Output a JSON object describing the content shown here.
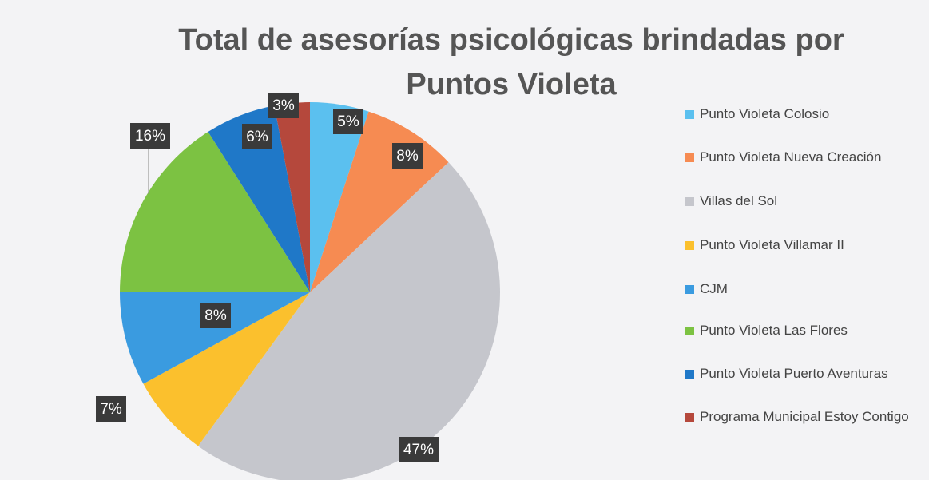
{
  "chart_data": {
    "type": "pie",
    "title": "Total de asesorías psicológicas brindadas por Puntos Violeta",
    "categories": [
      "Punto Violeta Colosio",
      "Punto Violeta Nueva Creación",
      "Villas del Sol",
      "Punto Violeta Villamar II",
      "CJM",
      "Punto Violeta Las Flores",
      "Punto Violeta Puerto Aventuras",
      "Programa Municipal Estoy Contigo"
    ],
    "values": [
      5,
      8,
      47,
      7,
      8,
      16,
      6,
      3
    ],
    "value_labels": [
      "5%",
      "8%",
      "47%",
      "7%",
      "8%",
      "16%",
      "6%",
      "3%"
    ],
    "colors": [
      "#5bc0ef",
      "#f68b52",
      "#c5c6cc",
      "#fbc02d",
      "#3a9be0",
      "#7cc242",
      "#1f78c8",
      "#b5483c"
    ],
    "legend": "right"
  }
}
